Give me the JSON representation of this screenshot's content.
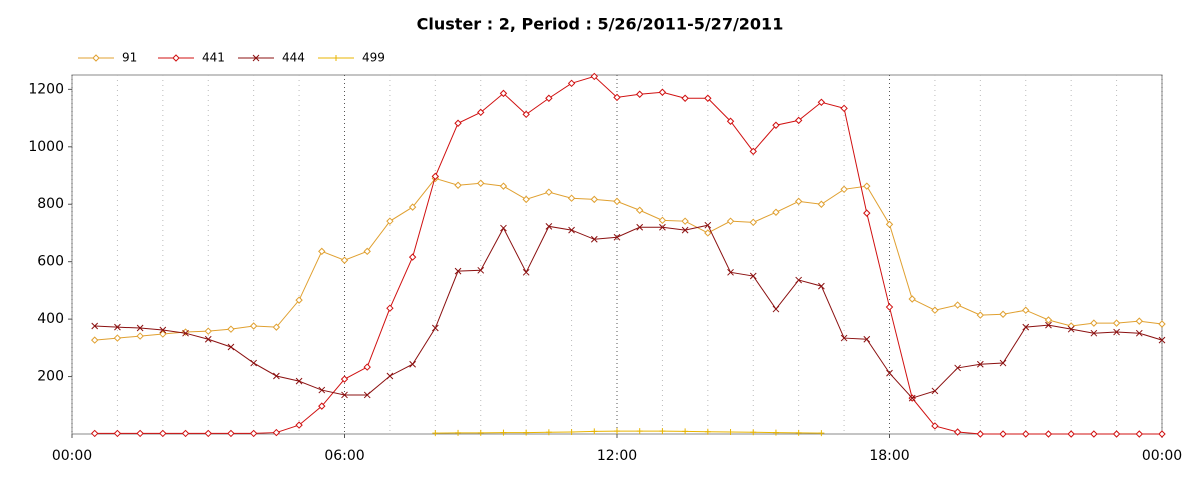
{
  "chart_data": {
    "type": "line",
    "title": "Cluster : 2, Period : 5/26/2011-5/27/2011",
    "x": [
      0.5,
      1,
      1.5,
      2,
      2.5,
      3,
      3.5,
      4,
      4.5,
      5,
      5.5,
      6,
      6.5,
      7,
      7.5,
      8,
      8.5,
      9,
      9.5,
      10,
      10.5,
      11,
      11.5,
      12,
      12.5,
      13,
      13.5,
      14,
      14.5,
      15,
      15.5,
      16,
      16.5,
      17,
      17.5,
      18,
      18.5,
      19,
      19.5,
      20,
      20.5,
      21,
      21.5,
      22,
      22.5,
      23,
      23.5,
      24
    ],
    "series": [
      {
        "name": "91",
        "color": "#e0a030",
        "marker": "diamond",
        "values": [
          327,
          334,
          341,
          348,
          355,
          358,
          365,
          376,
          372,
          466,
          636,
          605,
          636,
          741,
          790,
          890,
          866,
          873,
          863,
          817,
          842,
          821,
          817,
          810,
          779,
          744,
          741,
          700,
          741,
          737,
          772,
          810,
          800,
          852,
          863,
          730,
          470,
          431,
          449,
          414,
          417,
          431,
          397,
          376,
          386,
          386,
          393,
          383
        ]
      },
      {
        "name": "441",
        "color": "#d01010",
        "marker": "diamond",
        "values": [
          2,
          2,
          2,
          2,
          2,
          2,
          2,
          2,
          5,
          31,
          97,
          191,
          233,
          438,
          616,
          897,
          1082,
          1120,
          1186,
          1113,
          1169,
          1221,
          1245,
          1172,
          1183,
          1190,
          1169,
          1169,
          1089,
          984,
          1075,
          1092,
          1155,
          1134,
          769,
          442,
          125,
          28,
          7,
          0,
          0,
          0,
          0,
          0,
          0,
          0,
          0,
          0
        ]
      },
      {
        "name": "444",
        "color": "#8b1010",
        "marker": "x",
        "values": [
          376,
          372,
          369,
          362,
          351,
          330,
          303,
          247,
          202,
          184,
          153,
          136,
          136,
          202,
          243,
          369,
          567,
          570,
          717,
          563,
          723,
          710,
          678,
          685,
          720,
          720,
          710,
          727,
          563,
          550,
          435,
          536,
          515,
          334,
          330,
          212,
          125,
          150,
          230,
          243,
          247,
          372,
          379,
          365,
          351,
          355,
          351,
          327
        ]
      },
      {
        "name": "499",
        "color": "#e8b400",
        "marker": "plus",
        "values": [
          null,
          null,
          null,
          null,
          null,
          null,
          null,
          null,
          null,
          null,
          null,
          null,
          null,
          null,
          null,
          3,
          4,
          4,
          5,
          5,
          6,
          7,
          9,
          10,
          10,
          10,
          9,
          8,
          7,
          6,
          5,
          4,
          3,
          null,
          null,
          null,
          null,
          null,
          null,
          null,
          null,
          null,
          null,
          null,
          null,
          null,
          null,
          null
        ]
      }
    ],
    "xlim": [
      0,
      24
    ],
    "xticks": [
      {
        "value": 0,
        "label": "00:00"
      },
      {
        "value": 6,
        "label": "06:00"
      },
      {
        "value": 12,
        "label": "12:00"
      },
      {
        "value": 18,
        "label": "18:00"
      },
      {
        "value": 24,
        "label": "00:00"
      }
    ],
    "xminor": [
      1,
      2,
      3,
      4,
      5,
      7,
      8,
      9,
      10,
      11,
      13,
      14,
      15,
      16,
      17,
      19,
      20,
      21,
      22,
      23
    ],
    "ylim": [
      0,
      1250
    ],
    "yticks": [
      200,
      400,
      600,
      800,
      1000,
      1200
    ],
    "legend": "top-left"
  }
}
